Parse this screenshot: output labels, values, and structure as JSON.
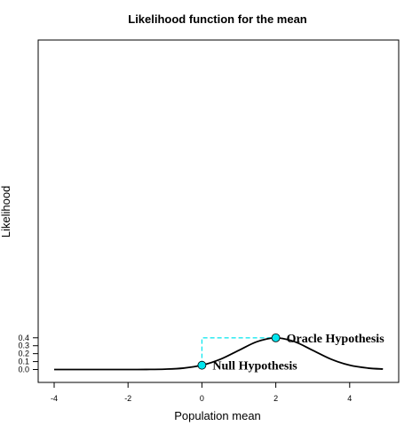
{
  "chart_data": {
    "type": "line",
    "title": "Likelihood function for the mean",
    "xlabel": "Population mean",
    "ylabel": "Likelihood",
    "xlim": [
      -4,
      4.9
    ],
    "ylim": [
      0,
      0.42
    ],
    "xticks": [
      "-4",
      "-2",
      "0",
      "2",
      "4"
    ],
    "yticks": [
      "0.0",
      "0.1",
      "0.2",
      "0.3",
      "0.4"
    ],
    "grid": false,
    "series": [
      {
        "color": "#000000",
        "x": [
          -4.0,
          -3.5,
          -3.0,
          -2.5,
          -2.0,
          -1.5,
          -1.0,
          -0.5,
          0.0,
          0.5,
          1.0,
          1.5,
          2.0,
          2.5,
          3.0,
          3.5,
          4.0,
          4.5,
          4.9
        ],
        "y": [
          0.0,
          0.0,
          0.0,
          0.0,
          0.0001,
          0.0009,
          0.0044,
          0.0175,
          0.054,
          0.1295,
          0.242,
          0.3521,
          0.3989,
          0.3521,
          0.242,
          0.1295,
          0.054,
          0.0175,
          0.006
        ]
      }
    ],
    "points": [
      {
        "label": "Null Hypothesis",
        "x": 0,
        "y": 0.054,
        "color": "#00e5ee"
      },
      {
        "label": "Oracle Hypothesis",
        "x": 2,
        "y": 0.3989,
        "color": "#00e5ee"
      }
    ],
    "guide_color": "#00e5ee"
  }
}
